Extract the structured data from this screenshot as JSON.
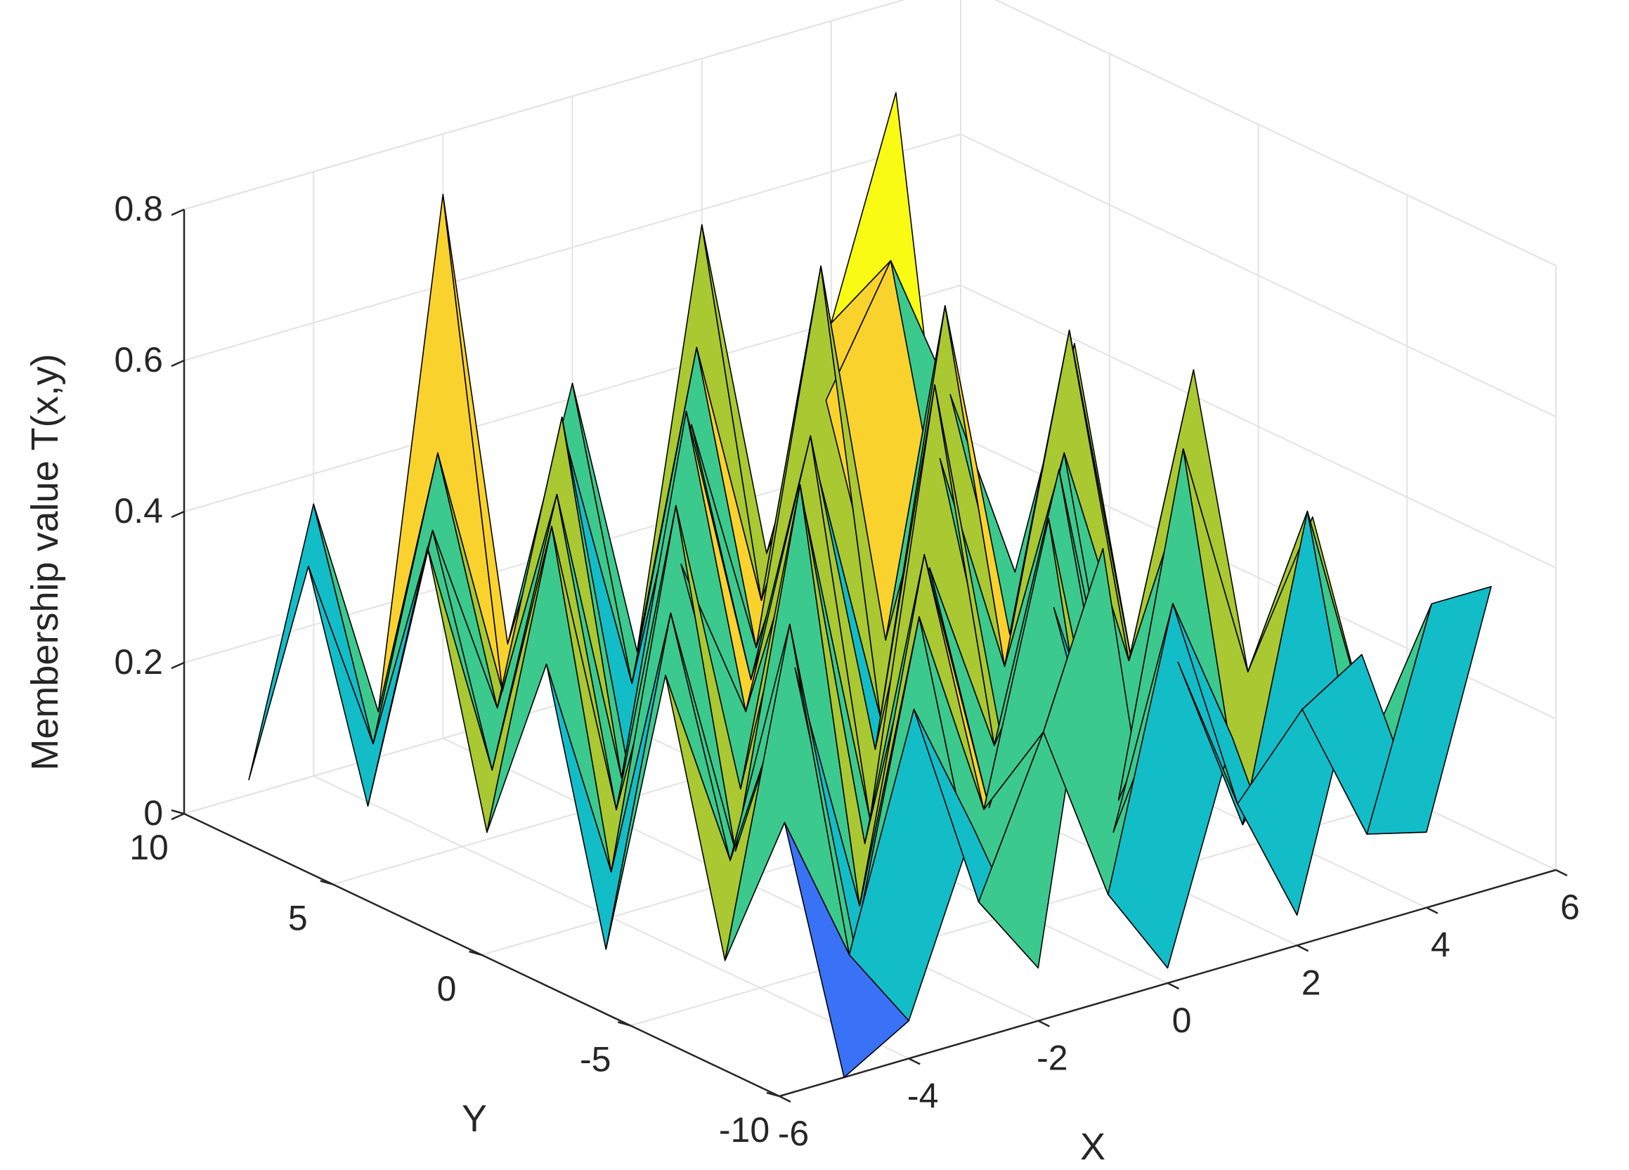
{
  "chart_data": {
    "type": "surface3d",
    "title": "",
    "xlabel": "X",
    "ylabel": "Y",
    "zlabel": "Membership value T(x,y)",
    "xlim": [
      -6,
      6
    ],
    "ylim": [
      -10,
      10
    ],
    "zlim": [
      0,
      0.8
    ],
    "x_ticks": [
      {
        "value": -6,
        "label": "-6"
      },
      {
        "value": -4,
        "label": "-4"
      },
      {
        "value": -2,
        "label": "-2"
      },
      {
        "value": 0,
        "label": "0"
      },
      {
        "value": 2,
        "label": "2"
      },
      {
        "value": 4,
        "label": "4"
      },
      {
        "value": 6,
        "label": "6"
      }
    ],
    "y_ticks": [
      {
        "value": -10,
        "label": "-10"
      },
      {
        "value": -5,
        "label": "-5"
      },
      {
        "value": 0,
        "label": "0"
      },
      {
        "value": 5,
        "label": "5"
      },
      {
        "value": 10,
        "label": "10"
      }
    ],
    "z_ticks": [
      {
        "value": 0,
        "label": "0"
      },
      {
        "value": 0.2,
        "label": "0.2"
      },
      {
        "value": 0.4,
        "label": "0.4"
      },
      {
        "value": 0.6,
        "label": "0.6"
      },
      {
        "value": 0.8,
        "label": "0.8"
      }
    ],
    "grid": true,
    "colormap": "parula",
    "colormap_colors": [
      "#3e26a8",
      "#4745e8",
      "#3a72f7",
      "#2b9ff2",
      "#12bdc8",
      "#3cc98e",
      "#a9c832",
      "#f9d22d",
      "#f9fb14"
    ],
    "x": [
      -5,
      -4,
      -3,
      -2,
      -1,
      0,
      1,
      2,
      3,
      4,
      5
    ],
    "y": [
      -10,
      -8,
      -6,
      -4,
      -2,
      0,
      2,
      4,
      6,
      8,
      10
    ],
    "z": [
      [
        0.0,
        0.05,
        0.28,
        0.07,
        0.6,
        0.02,
        0.3,
        0.04,
        0.36,
        0.1,
        0.4
      ],
      [
        0.3,
        0.1,
        0.4,
        0.12,
        0.32,
        0.08,
        0.44,
        0.15,
        0.25,
        0.06,
        0.34
      ],
      [
        0.08,
        0.5,
        0.05,
        0.46,
        0.18,
        0.54,
        0.1,
        0.3,
        0.06,
        0.45,
        0.12
      ],
      [
        0.42,
        0.15,
        0.38,
        0.04,
        0.48,
        0.12,
        0.36,
        0.08,
        0.52,
        0.2,
        0.38
      ],
      [
        0.02,
        0.44,
        0.1,
        0.56,
        0.06,
        0.4,
        0.14,
        0.48,
        0.04,
        0.42,
        0.1
      ],
      [
        0.36,
        0.06,
        0.52,
        0.12,
        0.46,
        0.03,
        0.58,
        0.1,
        0.44,
        0.14,
        0.5
      ],
      [
        0.1,
        0.48,
        0.08,
        0.38,
        0.16,
        0.5,
        0.06,
        0.42,
        0.12,
        0.54,
        0.06
      ],
      [
        0.44,
        0.12,
        0.46,
        0.06,
        0.52,
        0.14,
        0.4,
        0.04,
        0.56,
        0.1,
        0.46
      ],
      [
        0.06,
        0.4,
        0.14,
        0.5,
        0.02,
        0.44,
        0.12,
        0.6,
        0.08,
        0.38,
        0.12
      ],
      [
        0.34,
        0.08,
        0.44,
        0.1,
        0.4,
        0.06,
        0.48,
        0.12,
        0.36,
        0.52,
        0.04
      ],
      [
        0.02,
        0.36,
        0.06,
        0.72,
        0.1,
        0.42,
        0.04,
        0.58,
        0.12,
        0.4,
        0.68
      ]
    ]
  }
}
